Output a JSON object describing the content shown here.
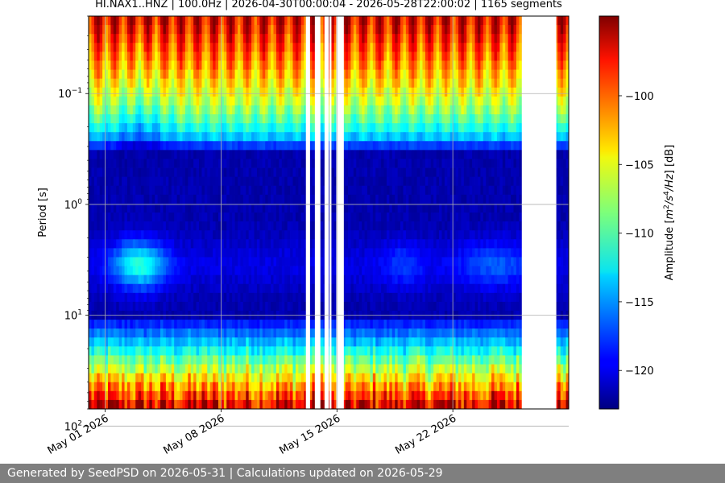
{
  "chart_data": {
    "type": "heatmap",
    "title": "HI.NAX1..HNZ | 100.0Hz | 2026-04-30T00:00:04 - 2026-05-28T22:00:02 | 1165 segments",
    "ylabel": "Period [s]",
    "yscale": "log",
    "ylim": [
      0.02,
      70
    ],
    "y_inverted": true,
    "x_start": "2026-04-30",
    "x_end": "2026-05-29",
    "x_ticks": [
      "May 01 2026",
      "May 08 2026",
      "May 15 2026",
      "May 22 2026"
    ],
    "x_tick_dates": [
      "2026-05-01",
      "2026-05-08",
      "2026-05-15",
      "2026-05-22"
    ],
    "y_ticks": [
      {
        "base": "10",
        "exp": "−1",
        "value": 0.1
      },
      {
        "base": "10",
        "exp": "0",
        "value": 1
      },
      {
        "base": "10",
        "exp": "1",
        "value": 10
      },
      {
        "base": "10",
        "exp": "2",
        "value": 100
      }
    ],
    "grid": true,
    "colorbar": {
      "label_prefix": "Amplitude [",
      "label_math": "m",
      "label_sup1": "2",
      "label_math2": "/s",
      "label_sup2": "4",
      "label_math3": "/Hz",
      "label_suffix": "] [dB]",
      "range": [
        -122.8,
        -94.2
      ],
      "ticks": [
        -100,
        -105,
        -110,
        -115,
        -120
      ],
      "tick_labels": [
        "−100",
        "−105",
        "−110",
        "−115",
        "−120"
      ],
      "colormap": "jet"
    },
    "data_gaps": [
      [
        "2026-05-13T03:00",
        "2026-05-13T09:00"
      ],
      [
        "2026-05-13T16:00",
        "2026-05-14T00:00"
      ],
      [
        "2026-05-14T06:00",
        "2026-05-14T12:00"
      ],
      [
        "2026-05-14T13:00",
        "2026-05-14T16:00"
      ],
      [
        "2026-05-14T23:00",
        "2026-05-15T10:00"
      ],
      [
        "2026-05-26T04:00",
        "2026-05-28T06:00"
      ]
    ],
    "features": {
      "short_period_high_amplitude_dB": -96,
      "microseism_band_period_s": [
        2,
        6
      ],
      "long_period_high_amplitude_dB": -97
    }
  },
  "footer": "Generated by SeedPSD on 2026-05-31 | Calculations updated on 2026-05-29"
}
